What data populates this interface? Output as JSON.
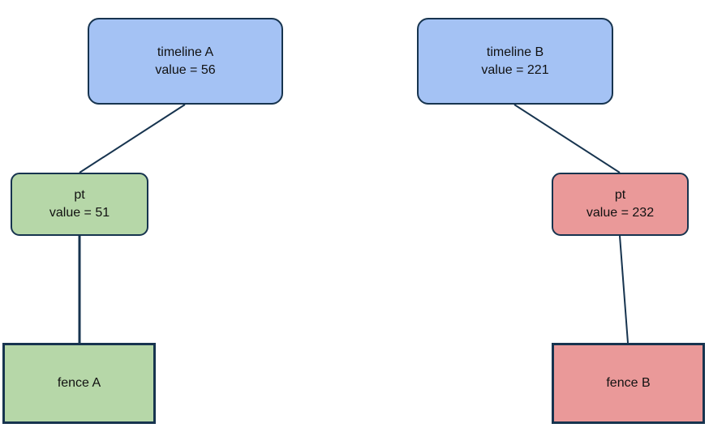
{
  "colors": {
    "timeline": "#a4c2f4",
    "signaled": "#b6d7a8",
    "unsignaled": "#ea9999",
    "stroke": "#17344f"
  },
  "nodes": {
    "timeline_a": {
      "title": "timeline A",
      "value": "value = 56"
    },
    "timeline_b": {
      "title": "timeline B",
      "value": "value = 221"
    },
    "pt_a": {
      "title": "pt",
      "value": "value = 51"
    },
    "pt_b": {
      "title": "pt",
      "value": "value = 232"
    },
    "fence_a": {
      "title": "fence A"
    },
    "fence_b": {
      "title": "fence B"
    }
  }
}
